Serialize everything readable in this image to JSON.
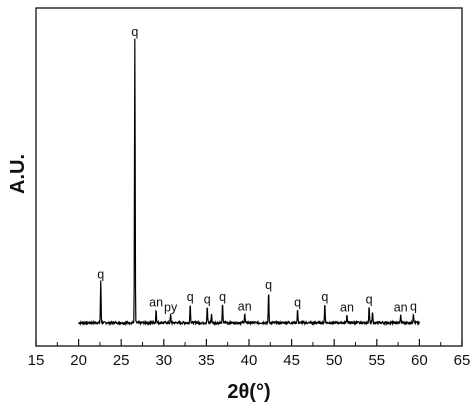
{
  "chart_data": {
    "type": "line",
    "xlabel": "2θ(°)",
    "ylabel": "A.U.",
    "xlim": [
      15,
      65
    ],
    "ylim": [
      0,
      100
    ],
    "x_ticks": [
      15,
      20,
      25,
      30,
      35,
      40,
      45,
      50,
      55,
      60,
      65
    ],
    "y_ticks_shown": false,
    "grid": false,
    "legend": "none",
    "line_color": "#000000",
    "baseline": 2,
    "x_range": [
      20,
      60
    ],
    "peaks": [
      {
        "x": 22.6,
        "y": 14,
        "label": "q"
      },
      {
        "x": 26.6,
        "y": 96,
        "label": "q"
      },
      {
        "x": 29.1,
        "y": 4.5,
        "label": "an"
      },
      {
        "x": 30.8,
        "y": 2.8,
        "label": "py"
      },
      {
        "x": 33.1,
        "y": 6.5,
        "label": "q"
      },
      {
        "x": 35.1,
        "y": 5.5,
        "label": "q"
      },
      {
        "x": 35.6,
        "y": 3.0,
        "label": ""
      },
      {
        "x": 36.9,
        "y": 6.5,
        "label": "q"
      },
      {
        "x": 39.5,
        "y": 3.2,
        "label": "an"
      },
      {
        "x": 42.3,
        "y": 10.5,
        "label": "q"
      },
      {
        "x": 45.7,
        "y": 4.5,
        "label": "q"
      },
      {
        "x": 48.9,
        "y": 6.5,
        "label": "q"
      },
      {
        "x": 51.5,
        "y": 2.8,
        "label": "an"
      },
      {
        "x": 54.1,
        "y": 5.5,
        "label": "q"
      },
      {
        "x": 54.5,
        "y": 3.5,
        "label": ""
      },
      {
        "x": 57.8,
        "y": 2.8,
        "label": "an"
      },
      {
        "x": 59.3,
        "y": 3.2,
        "label": "q"
      }
    ]
  }
}
